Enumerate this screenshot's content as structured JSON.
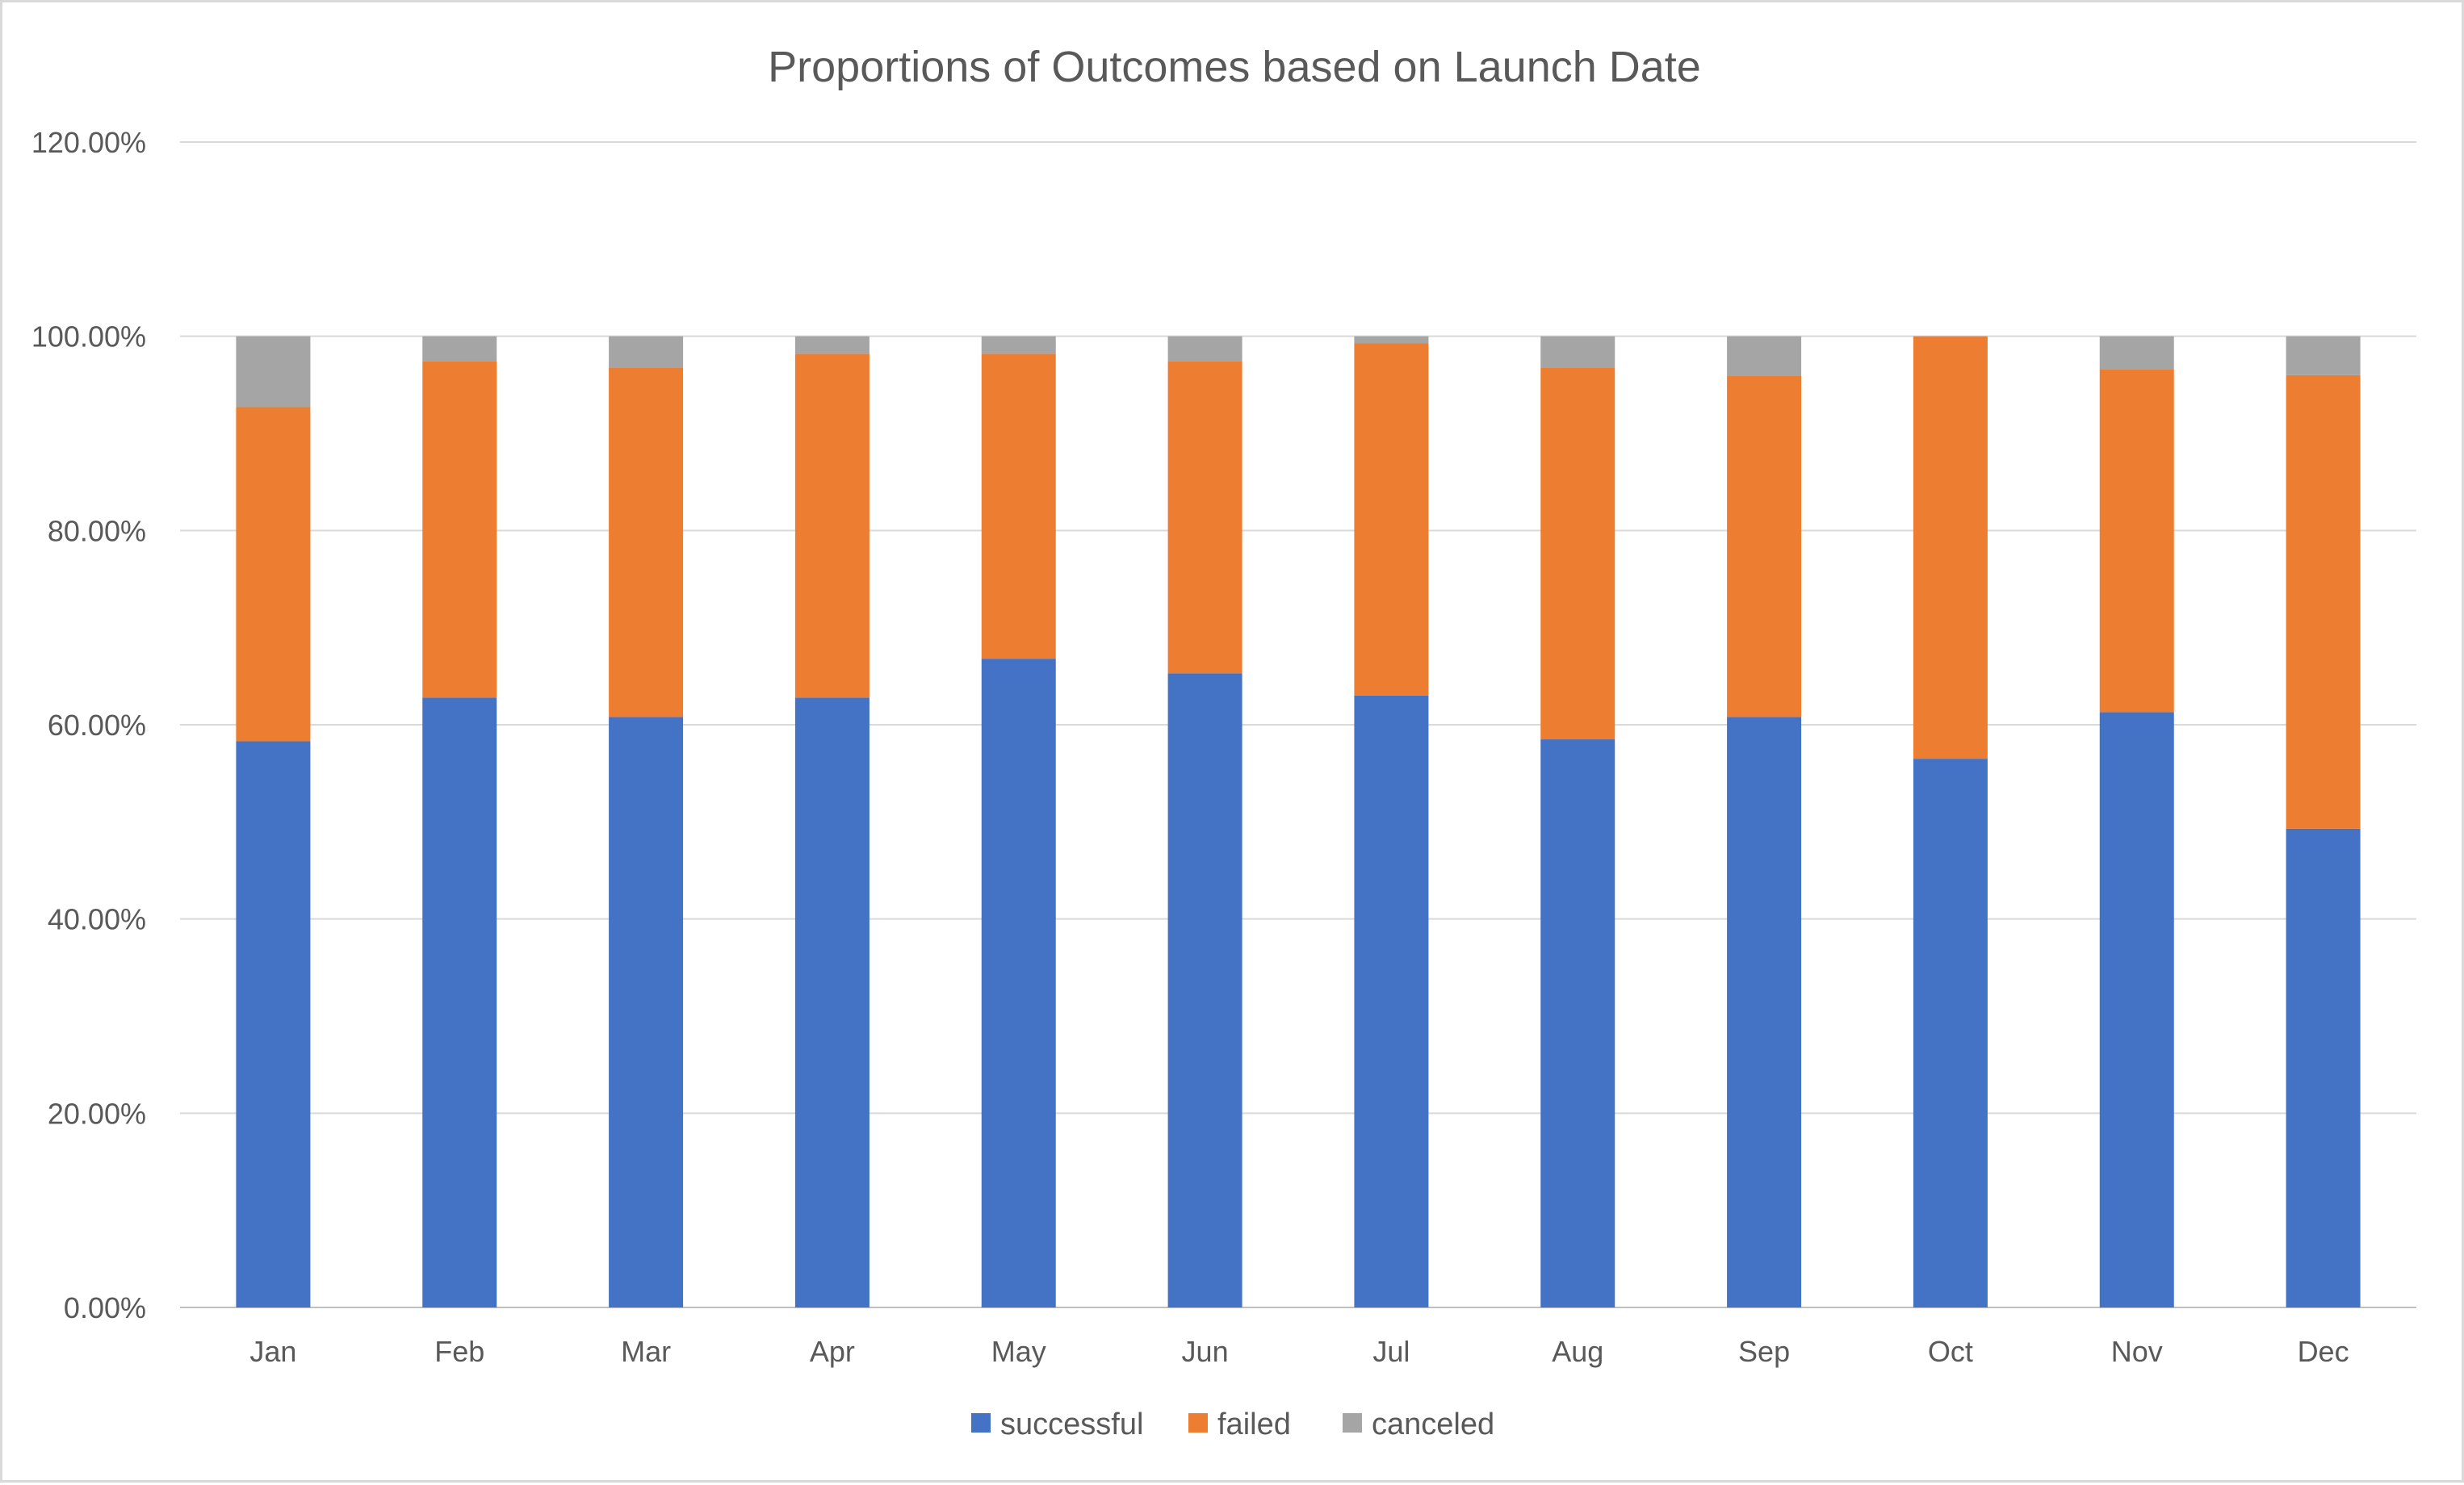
{
  "chart_data": {
    "type": "bar",
    "stacked": true,
    "title": "Proportions of Outcomes based on Launch Date",
    "xlabel": "",
    "ylabel": "",
    "categories": [
      "Jan",
      "Feb",
      "Mar",
      "Apr",
      "May",
      "Jun",
      "Jul",
      "Aug",
      "Sep",
      "Oct",
      "Nov",
      "Dec"
    ],
    "series": [
      {
        "name": "successful",
        "color": "#4472c4",
        "values": [
          58.3,
          62.8,
          60.8,
          62.8,
          66.8,
          65.3,
          63.0,
          58.5,
          60.8,
          56.5,
          61.3,
          49.3
        ]
      },
      {
        "name": "failed",
        "color": "#ed7d31",
        "values": [
          34.4,
          34.6,
          36.0,
          35.4,
          31.4,
          32.1,
          36.3,
          38.3,
          35.1,
          43.5,
          35.3,
          46.7
        ]
      },
      {
        "name": "canceled",
        "color": "#a5a5a5",
        "values": [
          7.3,
          2.6,
          3.2,
          1.8,
          1.8,
          2.6,
          0.7,
          3.2,
          4.1,
          0.0,
          3.4,
          4.0
        ]
      }
    ],
    "ylim": [
      0,
      120
    ],
    "yticks": [
      "0.00%",
      "20.00%",
      "40.00%",
      "60.00%",
      "80.00%",
      "100.00%",
      "120.00%"
    ],
    "ytick_values": [
      0,
      20,
      40,
      60,
      80,
      100,
      120
    ],
    "grid": true,
    "legend": "bottom"
  }
}
